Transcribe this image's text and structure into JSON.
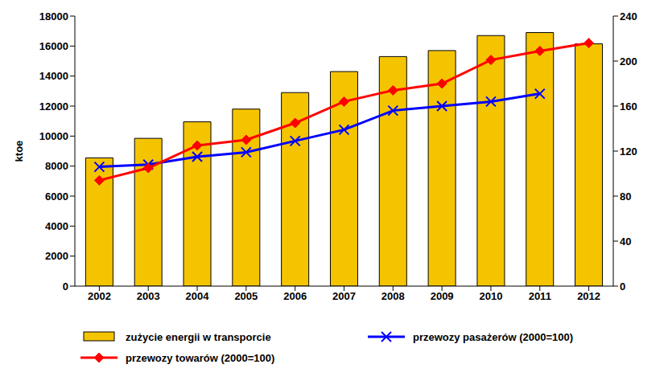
{
  "chart_data": {
    "type": "bar",
    "categories": [
      "2002",
      "2003",
      "2004",
      "2005",
      "2006",
      "2007",
      "2008",
      "2009",
      "2010",
      "2011",
      "2012"
    ],
    "y_label": "ktoe",
    "ylim": [
      0,
      18000
    ],
    "yticks": [
      0,
      2000,
      4000,
      6000,
      8000,
      10000,
      12000,
      14000,
      16000,
      18000
    ],
    "y2lim": [
      0,
      240
    ],
    "y2ticks": [
      0,
      40,
      80,
      120,
      160,
      200,
      240
    ],
    "grid": false,
    "legend": "bottom",
    "series": [
      {
        "name": "zużycie energii w transporcie",
        "type": "bar",
        "color": "#f5c400",
        "values": [
          8550,
          9850,
          10950,
          11800,
          12900,
          14300,
          15300,
          15700,
          16700,
          16900,
          16150
        ]
      },
      {
        "name": "przewozy pasażerów (2000=100)",
        "type": "line",
        "axis": "y2",
        "color": "#0000ff",
        "marker": "x",
        "values": [
          106,
          108,
          115,
          119,
          129,
          139,
          156,
          160,
          164,
          171,
          null
        ]
      },
      {
        "name": "przewozy towarów (2000=100)",
        "type": "line",
        "axis": "y2",
        "color": "#ff0000",
        "marker": "diamond",
        "values": [
          94,
          105,
          125,
          130,
          145,
          164,
          174,
          180,
          201,
          209,
          216
        ]
      }
    ]
  }
}
